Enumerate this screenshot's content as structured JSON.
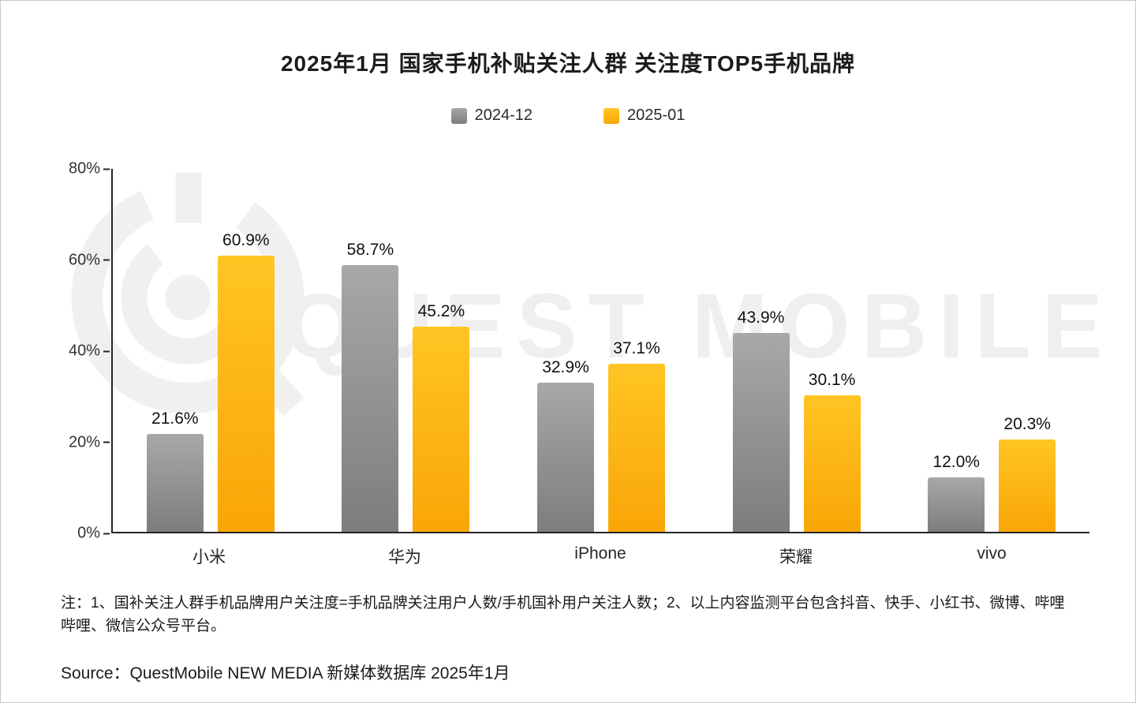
{
  "title": "2025年1月 国家手机补贴关注人群 关注度TOP5手机品牌",
  "colors": {
    "gray_top": "#a8a8a8",
    "gray_bottom": "#7d7d7d",
    "orange_top": "#ffc524",
    "orange_bottom": "#f9a606",
    "brand_orange": "#FFA302",
    "axis": "#262626",
    "watermark": "#efefef"
  },
  "chart_data": {
    "type": "bar",
    "title": "2025年1月 国家手机补贴关注人群 关注度TOP5手机品牌",
    "categories": [
      "小米",
      "华为",
      "iPhone",
      "荣耀",
      "vivo"
    ],
    "series": [
      {
        "name": "2024-12",
        "color_top": "#a8a8a8",
        "color_bottom": "#7d7d7d",
        "values": [
          21.6,
          58.7,
          32.9,
          43.9,
          12.0
        ]
      },
      {
        "name": "2025-01",
        "color_top": "#ffc524",
        "color_bottom": "#f9a606",
        "values": [
          60.9,
          45.2,
          37.1,
          30.1,
          20.3
        ]
      }
    ],
    "xlabel": "",
    "ylabel": "",
    "ylim": [
      0,
      80
    ],
    "yticks": [
      80,
      60,
      40,
      20,
      0
    ],
    "value_suffix": "%",
    "grid": false,
    "legend_position": "top"
  },
  "watermark": {
    "text": "QUEST MOBILE"
  },
  "note": "注：1、国补关注人群手机品牌用户关注度=手机品牌关注用户人数/手机国补用户关注人数；2、以上内容监测平台包含抖音、快手、小红书、微博、哔哩哔哩、微信公众号平台。",
  "source": {
    "prefix": "Source：",
    "brand": "QuestMobile",
    "rest": " NEW MEDIA 新媒体数据库 2025年1月"
  }
}
